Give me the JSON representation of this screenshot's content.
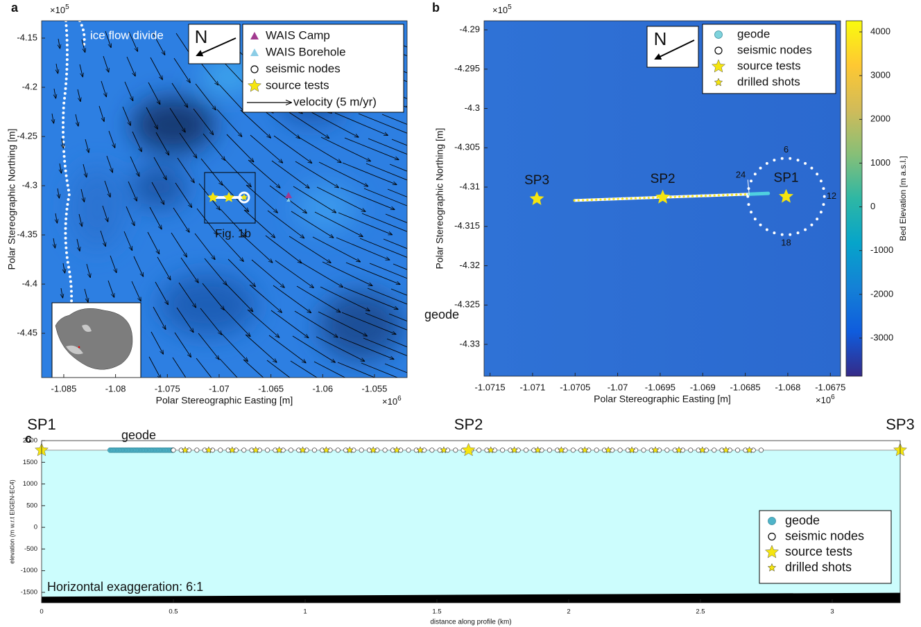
{
  "chart_data": [
    {
      "type": "map",
      "label": "a",
      "xlabel": "Polar Stereographic Easting [m]",
      "ylabel": "Polar Stereographic Northing [m]",
      "x_multiplier": {
        "base": "×10",
        "exp": "6"
      },
      "y_multiplier": {
        "base": "×10",
        "exp": "5"
      },
      "xlim": [
        -1.08714,
        -1.05185
      ],
      "ylim": [
        -4.495,
        -4.1324
      ],
      "xticks": [
        -1.085,
        -1.08,
        -1.075,
        -1.07,
        -1.065,
        -1.06,
        -1.055
      ],
      "yticks": [
        -4.45,
        -4.4,
        -4.35,
        -4.3,
        -4.25,
        -4.2,
        -4.15
      ],
      "north": "N",
      "annotations": [
        "ice flow divide",
        "Fig. 1b"
      ],
      "legend": [
        {
          "name": "WAIS Camp",
          "color": "#a23a8f",
          "marker": "triangle"
        },
        {
          "name": "WAIS Borehole",
          "color": "#8ccde6",
          "marker": "triangle"
        },
        {
          "name": "seismic nodes",
          "color": "#ffffff",
          "marker": "circle"
        },
        {
          "name": "source tests",
          "color": "#f5e50f",
          "marker": "star"
        },
        {
          "name": "velocity (5 m/yr)",
          "color": "#000000",
          "marker": "arrow"
        }
      ]
    },
    {
      "type": "map",
      "label": "b",
      "xlabel": "Polar Stereographic Easting [m]",
      "ylabel": "Polar Stereographic Northing [m]",
      "x_multiplier": {
        "base": "×10",
        "exp": "6"
      },
      "y_multiplier": {
        "base": "×10",
        "exp": "5"
      },
      "xlim": [
        -1.07157,
        -1.06738
      ],
      "ylim": [
        -4.33405,
        -4.28885
      ],
      "xticks": [
        -1.0715,
        -1.071,
        -1.0705,
        -1.07,
        -1.0695,
        -1.069,
        -1.0685,
        -1.068,
        -1.0675
      ],
      "yticks": [
        -4.33,
        -4.325,
        -4.32,
        -4.315,
        -4.31,
        -4.305,
        -4.3,
        -4.295,
        -4.29
      ],
      "north": "N",
      "points": [
        {
          "name": "SP3",
          "x": -1.07095,
          "y": -4.3115
        },
        {
          "name": "SP2",
          "x": -1.06947,
          "y": -4.3113
        },
        {
          "name": "SP1",
          "x": -1.06802,
          "y": -4.3112
        }
      ],
      "nodes_line": {
        "x": [
          -1.07051,
          -1.06845
        ],
        "y": [
          -4.3117,
          -4.3109
        ]
      },
      "geode_line": {
        "x": [
          -1.06845,
          -1.06823
        ],
        "y": [
          -4.3109,
          -4.3108
        ]
      },
      "ring": {
        "cx": -1.06802,
        "cy": -4.3112,
        "radius": 0.00045
      },
      "ring_labels": [
        "6",
        "12",
        "18",
        "24"
      ],
      "annotations": [
        "geode"
      ],
      "colorbar": {
        "label": "Bed Elevation [m a.s.l.]",
        "lim": [
          -3872,
          4254
        ],
        "ticks": [
          -3000,
          -2000,
          -1000,
          0,
          1000,
          2000,
          3000,
          4000
        ],
        "colormap": [
          "#352a87",
          "#0f5cdd",
          "#1481d6",
          "#06a4ca",
          "#2eb7a4",
          "#87bf77",
          "#d1bb59",
          "#fec832",
          "#f9fb0e"
        ]
      },
      "legend": [
        {
          "name": "geode",
          "color": "#7fd3dc",
          "marker": "dot"
        },
        {
          "name": "seismic nodes",
          "color": "#ffffff",
          "marker": "circle"
        },
        {
          "name": "source tests",
          "color": "#f5e50f",
          "marker": "star"
        },
        {
          "name": "drilled shots",
          "color": "#f5e50f",
          "marker": "smallstar"
        }
      ]
    },
    {
      "type": "profile",
      "label": "c",
      "xlabel": "distance along profile (km)",
      "ylabel": "elevation (m w.r.t EIGEN-EC4)",
      "xlim": [
        0,
        3.258
      ],
      "ylim": [
        -1740,
        2000
      ],
      "xticks": [
        0,
        0.5,
        1,
        1.5,
        2,
        2.5,
        3
      ],
      "yticks": [
        -1500,
        -1000,
        -500,
        0,
        500,
        1000,
        1500,
        2000
      ],
      "surface": {
        "x": [
          0,
          3.258
        ],
        "y": [
          1780,
          1780
        ]
      },
      "bed": {
        "x": [
          0,
          3.258
        ],
        "y": [
          -1600,
          -1510
        ]
      },
      "points": [
        {
          "name": "SP1",
          "x": 0,
          "y": 1780
        },
        {
          "name": "SP2",
          "x": 1.62,
          "y": 1780
        },
        {
          "name": "SP3",
          "x": 3.258,
          "y": 1780
        }
      ],
      "geode": {
        "x": [
          0.26,
          0.5
        ]
      },
      "nodes": {
        "x": [
          0.5,
          2.76
        ]
      },
      "annotations": [
        "geode",
        "Horizontal exaggeration: 6:1"
      ],
      "legend": [
        {
          "name": "geode",
          "color": "#4fb4c9",
          "marker": "dot"
        },
        {
          "name": "seismic nodes",
          "color": "#ffffff",
          "marker": "circle"
        },
        {
          "name": "source tests",
          "color": "#f5e50f",
          "marker": "star"
        },
        {
          "name": "drilled shots",
          "color": "#f5e50f",
          "marker": "smallstar"
        }
      ]
    }
  ]
}
